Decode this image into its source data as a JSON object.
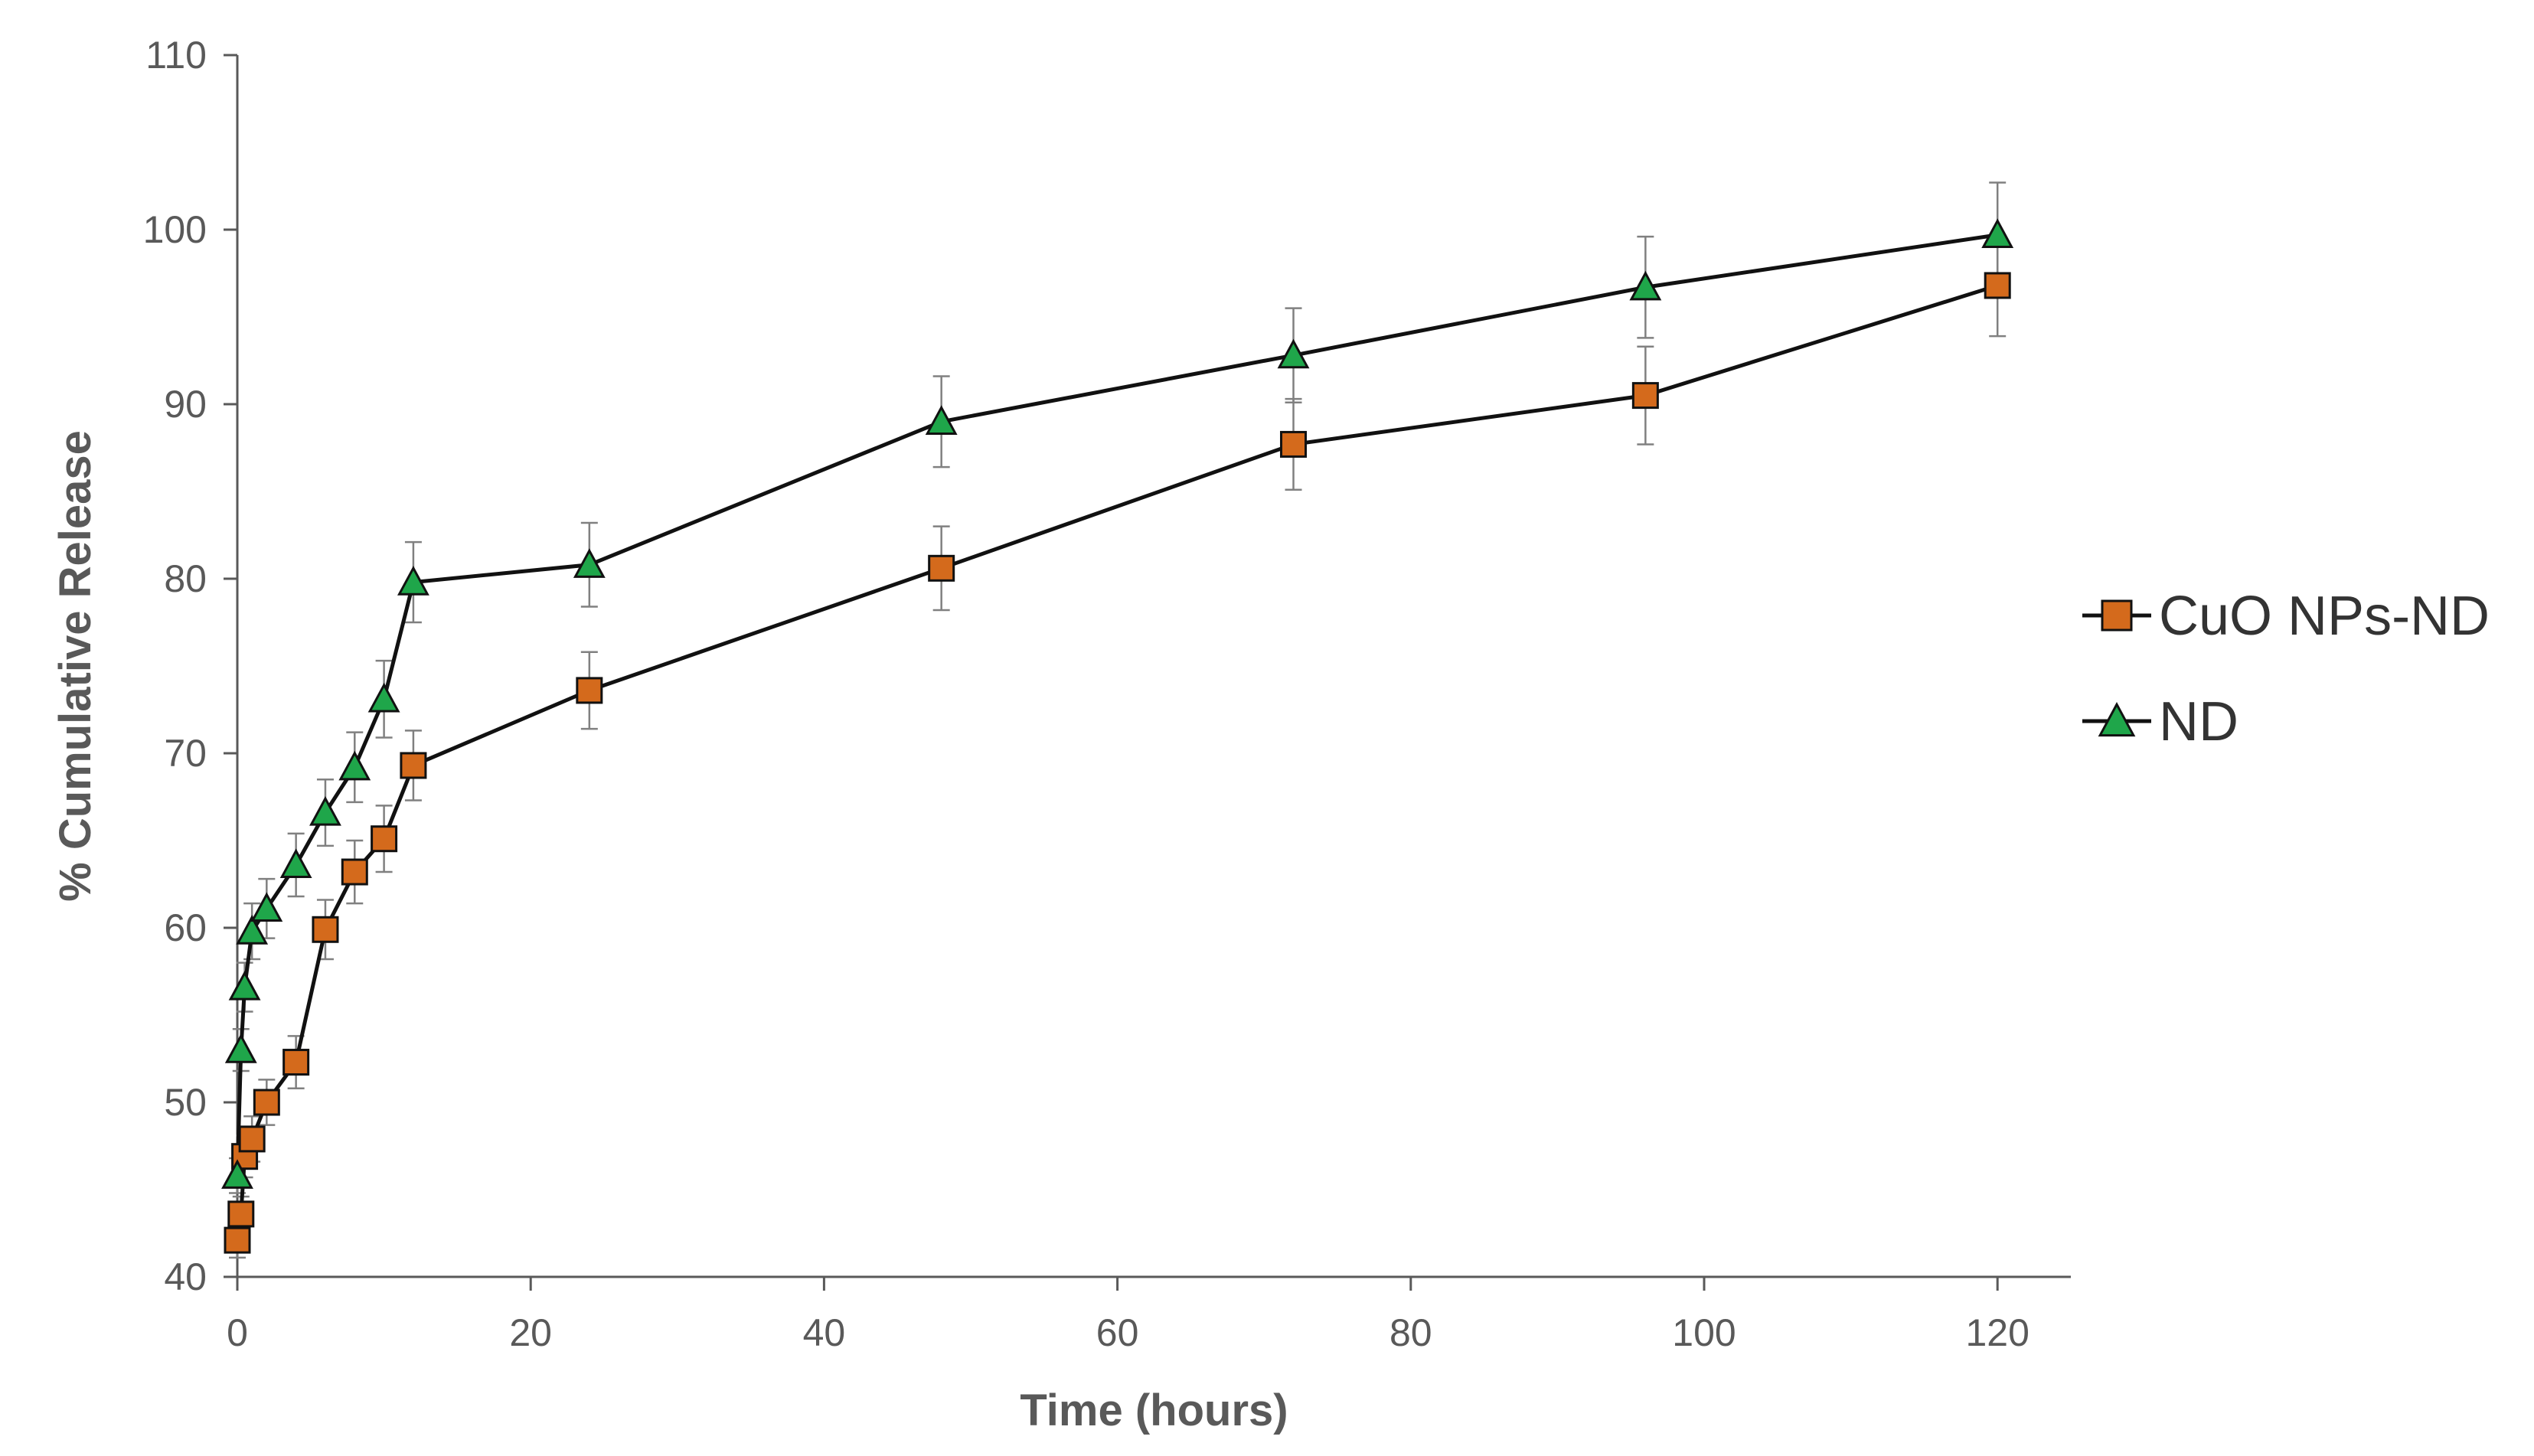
{
  "chart_data": {
    "type": "line",
    "title": "",
    "xlabel": "Time (hours)",
    "ylabel": "% Cumulative Release",
    "xlim": [
      0,
      125
    ],
    "ylim": [
      40,
      110
    ],
    "xticks": [
      0,
      20,
      40,
      60,
      80,
      100,
      120
    ],
    "yticks": [
      40,
      50,
      60,
      70,
      80,
      90,
      100,
      110
    ],
    "grid": false,
    "legend_position": "right",
    "series": [
      {
        "name": "CuO NPs-ND",
        "marker": "square",
        "color": "#d46a1c",
        "x": [
          0,
          0.25,
          0.5,
          1,
          2,
          4,
          6,
          8,
          10,
          12,
          24,
          48,
          72,
          96,
          120
        ],
        "y": [
          42.1,
          43.6,
          46.9,
          47.9,
          50.0,
          52.3,
          59.9,
          63.2,
          65.1,
          69.3,
          73.6,
          80.6,
          87.7,
          90.5,
          96.8
        ],
        "error": [
          1.0,
          1.0,
          1.2,
          1.3,
          1.3,
          1.5,
          1.7,
          1.8,
          1.9,
          2.0,
          2.2,
          2.4,
          2.6,
          2.8,
          2.9
        ]
      },
      {
        "name": "ND",
        "marker": "triangle",
        "color": "#1fa64a",
        "x": [
          0,
          0.25,
          0.5,
          1,
          2,
          4,
          6,
          8,
          10,
          12,
          24,
          48,
          72,
          96,
          120
        ],
        "y": [
          45.8,
          53.0,
          56.6,
          59.8,
          61.1,
          63.6,
          66.6,
          69.2,
          73.1,
          79.8,
          80.8,
          89.0,
          92.8,
          96.7,
          99.7
        ],
        "error": [
          1.0,
          1.2,
          1.4,
          1.6,
          1.7,
          1.8,
          1.9,
          2.0,
          2.2,
          2.3,
          2.4,
          2.6,
          2.7,
          2.9,
          3.0
        ]
      }
    ]
  }
}
